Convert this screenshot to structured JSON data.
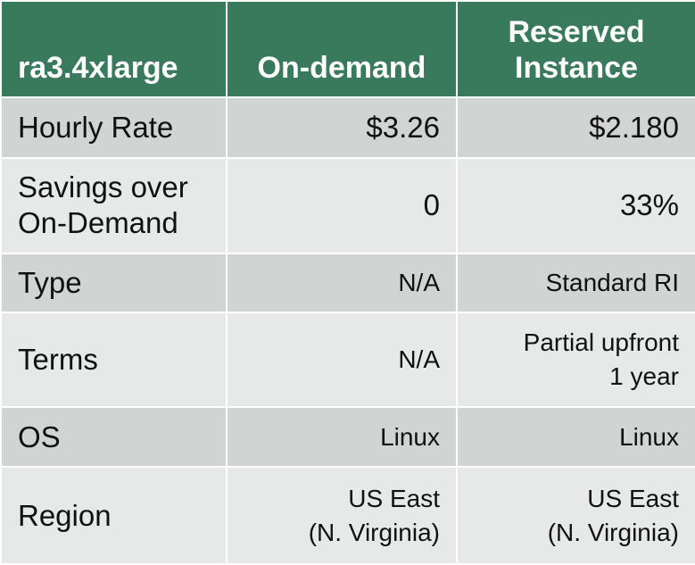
{
  "header": {
    "label": "ra3.4xlarge",
    "on_demand": "On-demand",
    "reserved_line1": "Reserved",
    "reserved_line2": "Instance"
  },
  "rows": [
    {
      "label_lines": [
        "Hourly Rate"
      ],
      "on_demand_lines": [
        "$3.26"
      ],
      "reserved_lines": [
        "$2.180"
      ]
    },
    {
      "label_lines": [
        "Savings over",
        "On-Demand"
      ],
      "on_demand_lines": [
        "0"
      ],
      "reserved_lines": [
        "33%"
      ]
    },
    {
      "label_lines": [
        "Type"
      ],
      "on_demand_lines": [
        "N/A"
      ],
      "reserved_lines": [
        "Standard RI"
      ]
    },
    {
      "label_lines": [
        "Terms"
      ],
      "on_demand_lines": [
        "N/A"
      ],
      "reserved_lines": [
        "Partial upfront",
        "1 year"
      ]
    },
    {
      "label_lines": [
        "OS"
      ],
      "on_demand_lines": [
        "Linux"
      ],
      "reserved_lines": [
        "Linux"
      ]
    },
    {
      "label_lines": [
        "Region"
      ],
      "on_demand_lines": [
        "US East",
        "(N. Virginia)"
      ],
      "reserved_lines": [
        "US East",
        "(N. Virginia)"
      ]
    }
  ],
  "colors": {
    "header_bg": "#3a7a5c",
    "header_text": "#ffffff",
    "row_dark": "#d0d4d2",
    "row_light": "#e7e9e8",
    "border": "#ffffff"
  }
}
